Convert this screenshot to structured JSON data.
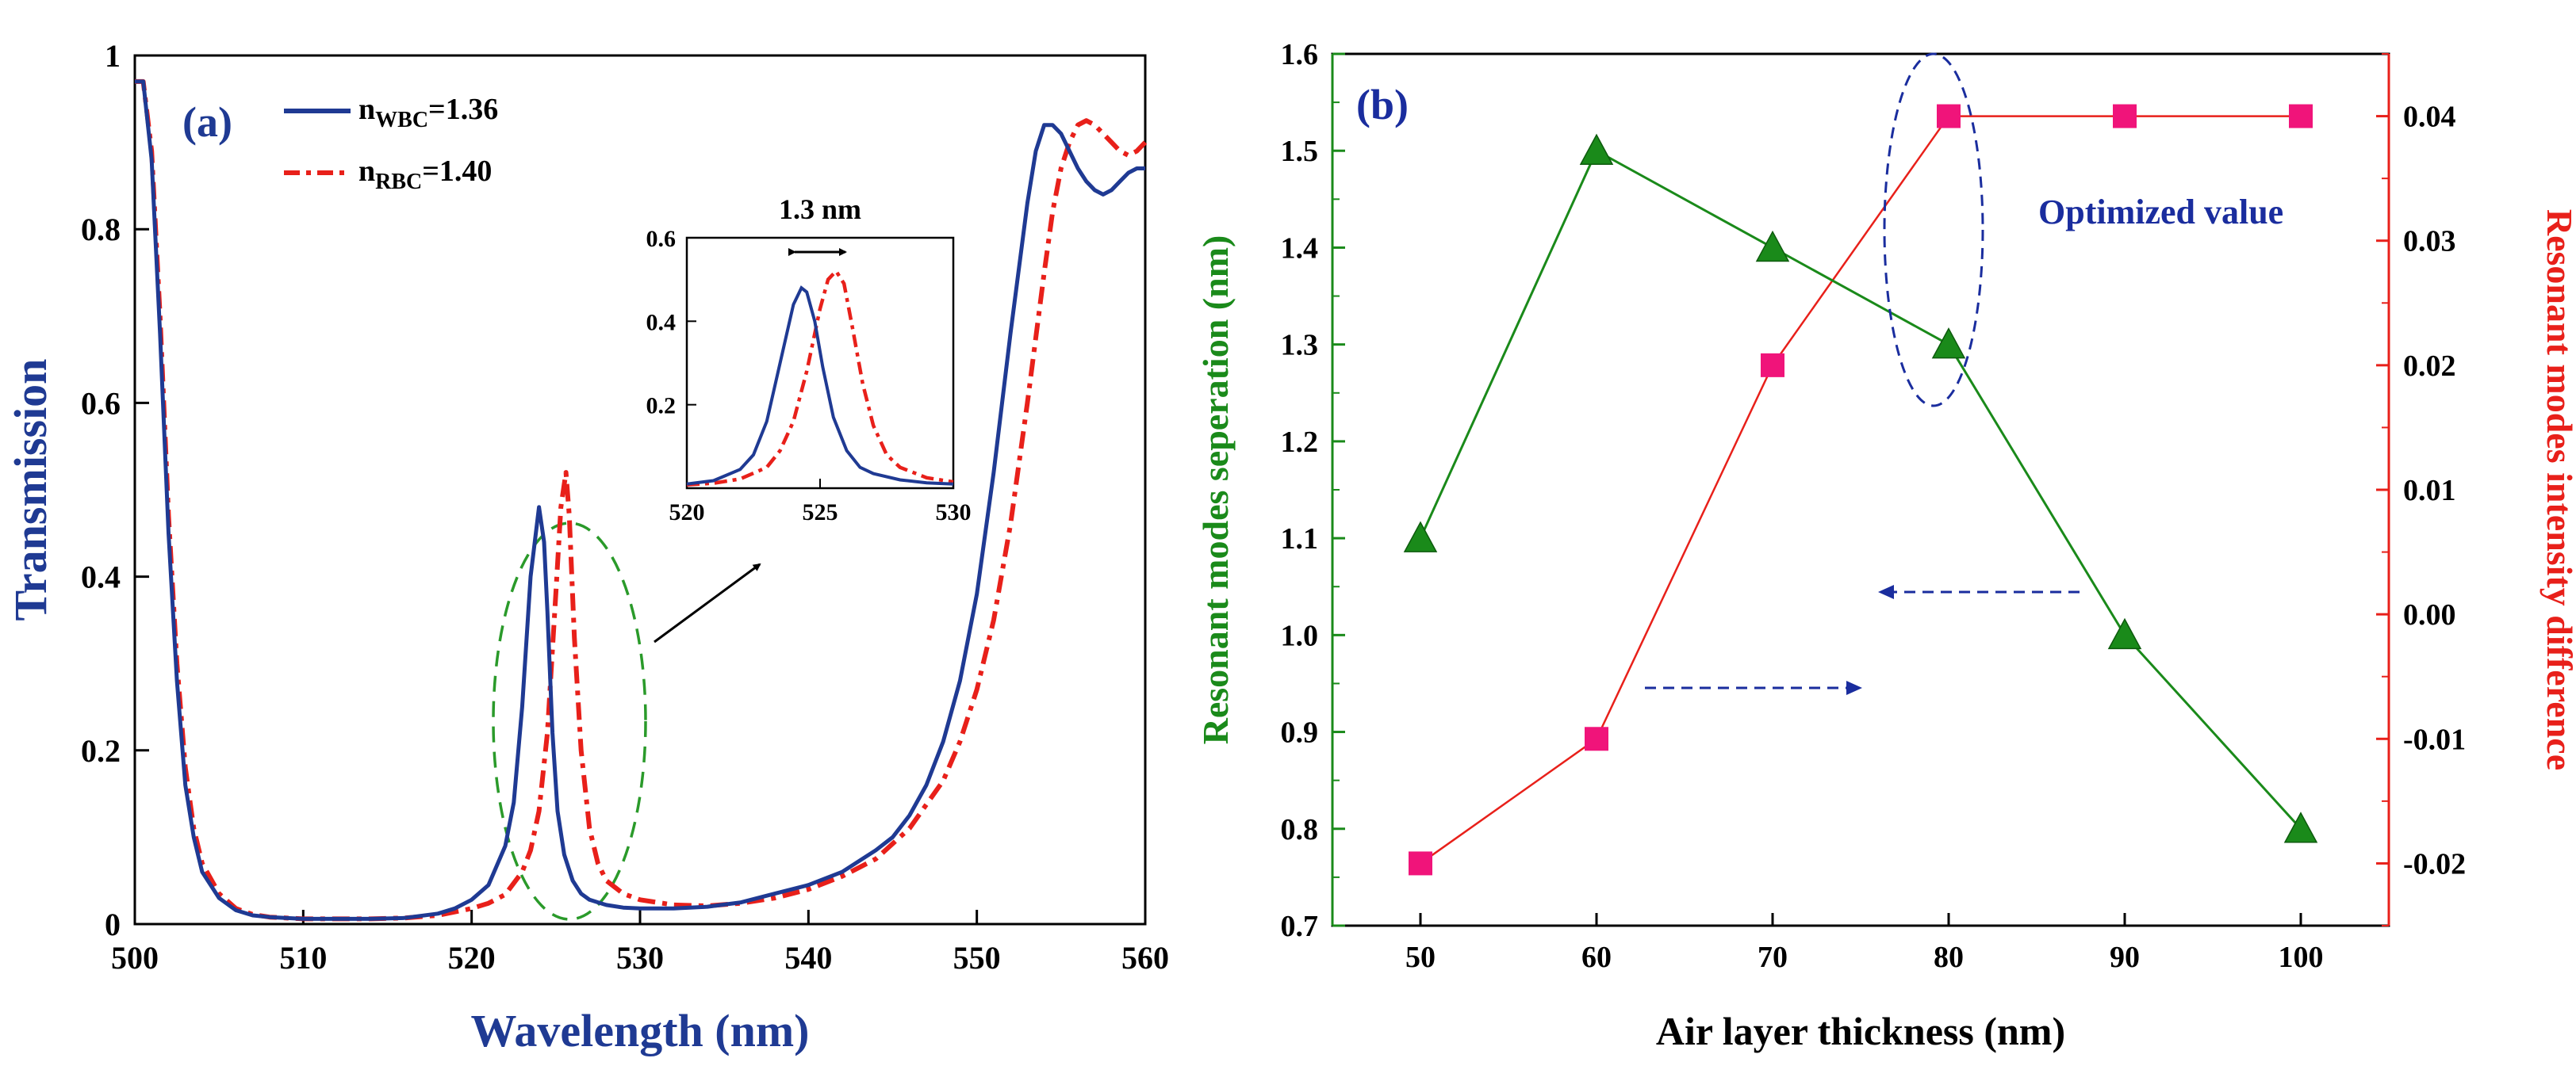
{
  "colors": {
    "blue": "#1f3a93",
    "red": "#e8201a",
    "green": "#1a8a1a",
    "pink": "#f0147a",
    "ellipse_green": "#2a9a2a",
    "ellipse_blue": "#1a2d9e"
  },
  "chart_data": [
    {
      "type": "line",
      "panel_label": "(a)",
      "xlabel": "Wavelength (nm)",
      "ylabel": "Transmission",
      "xlim": [
        500,
        560
      ],
      "ylim": [
        0,
        1
      ],
      "xticks": [
        "500",
        "510",
        "520",
        "530",
        "540",
        "550",
        "560"
      ],
      "yticks": [
        "0",
        "0.2",
        "0.4",
        "0.6",
        "0.8",
        "1"
      ],
      "legend": [
        {
          "prefix": "n",
          "sub": "WBC",
          "suffix": "=1.36",
          "style": "solid",
          "color": "#1f3a93"
        },
        {
          "prefix": "n",
          "sub": "RBC",
          "suffix": "=1.40",
          "style": "dash-dot",
          "color": "#e8201a"
        }
      ],
      "series": [
        {
          "name": "n_WBC=1.36",
          "x": [
            500,
            500.5,
            501,
            501.5,
            502,
            502.5,
            503,
            503.5,
            504,
            505,
            506,
            507,
            508,
            510,
            512,
            514,
            516,
            518,
            519,
            520,
            521,
            522,
            522.5,
            523,
            523.5,
            524,
            524.3,
            524.5,
            524.8,
            525.1,
            525.5,
            526,
            526.5,
            527,
            528,
            529,
            530,
            532,
            534,
            536,
            538,
            540,
            542,
            544,
            545,
            546,
            547,
            548,
            549,
            550,
            551,
            552,
            553,
            553.5,
            554,
            554.5,
            555,
            555.5,
            556,
            556.5,
            557,
            557.5,
            558,
            558.5,
            559,
            559.5,
            560
          ],
          "y": [
            0.97,
            0.97,
            0.88,
            0.68,
            0.45,
            0.28,
            0.16,
            0.1,
            0.06,
            0.03,
            0.016,
            0.01,
            0.008,
            0.006,
            0.006,
            0.006,
            0.007,
            0.012,
            0.018,
            0.028,
            0.045,
            0.09,
            0.14,
            0.25,
            0.4,
            0.48,
            0.44,
            0.36,
            0.22,
            0.13,
            0.08,
            0.05,
            0.035,
            0.028,
            0.022,
            0.019,
            0.018,
            0.018,
            0.02,
            0.025,
            0.035,
            0.045,
            0.06,
            0.085,
            0.1,
            0.125,
            0.16,
            0.21,
            0.28,
            0.38,
            0.52,
            0.68,
            0.83,
            0.89,
            0.92,
            0.92,
            0.91,
            0.89,
            0.87,
            0.855,
            0.845,
            0.84,
            0.845,
            0.855,
            0.865,
            0.87,
            0.87
          ]
        },
        {
          "name": "n_RBC=1.40",
          "x": [
            500,
            500.5,
            501,
            501.5,
            502,
            502.5,
            503,
            503.5,
            504,
            505,
            506,
            507,
            508,
            510,
            512,
            514,
            516,
            518,
            520,
            521,
            522,
            523,
            523.5,
            524,
            524.5,
            525,
            525.3,
            525.6,
            525.8,
            526.1,
            526.5,
            527,
            527.5,
            528,
            529,
            530,
            532,
            534,
            536,
            538,
            540,
            542,
            544,
            546,
            548,
            549,
            550,
            551,
            552,
            553,
            554,
            554.5,
            555,
            555.5,
            556,
            556.5,
            557,
            557.5,
            558,
            558.5,
            559,
            559.5,
            560
          ],
          "y": [
            0.97,
            0.97,
            0.89,
            0.7,
            0.47,
            0.3,
            0.18,
            0.11,
            0.07,
            0.035,
            0.018,
            0.011,
            0.008,
            0.006,
            0.006,
            0.006,
            0.007,
            0.01,
            0.018,
            0.024,
            0.034,
            0.06,
            0.085,
            0.13,
            0.22,
            0.38,
            0.48,
            0.52,
            0.47,
            0.33,
            0.2,
            0.11,
            0.07,
            0.05,
            0.035,
            0.028,
            0.022,
            0.021,
            0.024,
            0.03,
            0.04,
            0.055,
            0.075,
            0.11,
            0.165,
            0.21,
            0.27,
            0.35,
            0.46,
            0.6,
            0.75,
            0.82,
            0.87,
            0.9,
            0.92,
            0.925,
            0.92,
            0.91,
            0.9,
            0.89,
            0.885,
            0.89,
            0.9
          ]
        }
      ],
      "inset": {
        "xlim": [
          520,
          530
        ],
        "ylim": [
          0,
          0.6
        ],
        "xticks": [
          "520",
          "525",
          "530"
        ],
        "yticks": [
          "0.2",
          "0.4",
          "0.6"
        ],
        "annotation": "1.3 nm",
        "series": [
          {
            "name": "n_WBC=1.36",
            "x": [
              520,
              521,
              522,
              522.5,
              523,
              523.5,
              524,
              524.3,
              524.5,
              524.8,
              525.1,
              525.5,
              526,
              526.5,
              527,
              528,
              529,
              530
            ],
            "y": [
              0.01,
              0.018,
              0.045,
              0.08,
              0.16,
              0.3,
              0.44,
              0.48,
              0.47,
              0.4,
              0.29,
              0.17,
              0.09,
              0.05,
              0.035,
              0.02,
              0.013,
              0.01
            ]
          },
          {
            "name": "n_RBC=1.40",
            "x": [
              520,
              521,
              522,
              523,
              523.5,
              524,
              524.5,
              525,
              525.3,
              525.6,
              525.9,
              526.2,
              526.6,
              527,
              527.5,
              528,
              529,
              530
            ],
            "y": [
              0.008,
              0.012,
              0.022,
              0.05,
              0.09,
              0.16,
              0.28,
              0.43,
              0.5,
              0.52,
              0.49,
              0.39,
              0.25,
              0.15,
              0.08,
              0.05,
              0.025,
              0.015
            ]
          }
        ]
      }
    },
    {
      "type": "line",
      "panel_label": "(b)",
      "xlabel": "Air layer thickness (nm)",
      "ylabel_left": "Resonant modes seperation (nm)",
      "ylabel_right": "Resonant modes intensity difference",
      "annotation": "Optimized value",
      "xlim": [
        45,
        105
      ],
      "ylim_left": [
        0.7,
        1.6
      ],
      "ylim_right": [
        -0.025,
        0.045
      ],
      "xticks": [
        "50",
        "60",
        "70",
        "80",
        "90",
        "100"
      ],
      "yticks_left": [
        "0.7",
        "0.8",
        "0.9",
        "1.0",
        "1.1",
        "1.2",
        "1.3",
        "1.4",
        "1.5",
        "1.6"
      ],
      "yticks_right": [
        "-0.02",
        "-0.01",
        "0.00",
        "0.01",
        "0.02",
        "0.03",
        "0.04"
      ],
      "categories": [
        50,
        60,
        70,
        80,
        90,
        100
      ],
      "series": [
        {
          "name": "Resonant modes seperation",
          "axis": "left",
          "marker": "triangle",
          "color": "#1a8a1a",
          "values": [
            1.1,
            1.5,
            1.4,
            1.3,
            1.0,
            0.8
          ]
        },
        {
          "name": "Resonant modes intensity difference",
          "axis": "right",
          "marker": "square",
          "color": "#f0147a",
          "values": [
            -0.02,
            -0.01,
            0.02,
            0.04,
            0.04,
            0.04
          ]
        }
      ]
    }
  ]
}
